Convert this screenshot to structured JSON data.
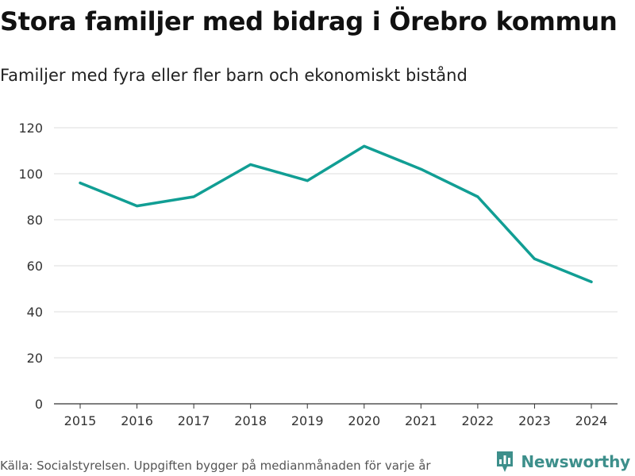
{
  "header": {
    "title": "Stora familjer med bidrag i Örebro kommun",
    "subtitle": "Familjer med fyra eller fler barn och ekonomiskt bistånd"
  },
  "footer": {
    "source": "Källa: Socialstyrelsen. Uppgiften bygger på medianmånaden för varje år",
    "brand": "Newsworthy"
  },
  "colors": {
    "line": "#119e94",
    "brand": "#3d8f8b",
    "grid": "#dddddd",
    "axis": "#333333"
  },
  "chart_data": {
    "type": "line",
    "title": "Stora familjer med bidrag i Örebro kommun",
    "subtitle": "Familjer med fyra eller fler barn och ekonomiskt bistånd",
    "xlabel": "",
    "ylabel": "",
    "x": [
      "2015",
      "2016",
      "2017",
      "2018",
      "2019",
      "2020",
      "2021",
      "2022",
      "2023",
      "2024"
    ],
    "series": [
      {
        "name": "Familjer",
        "values": [
          96,
          86,
          90,
          104,
          97,
          112,
          102,
          90,
          63,
          53
        ]
      }
    ],
    "ylim": [
      0,
      120
    ],
    "yticks": [
      0,
      20,
      40,
      60,
      80,
      100,
      120
    ],
    "grid": true,
    "legend": "none"
  }
}
